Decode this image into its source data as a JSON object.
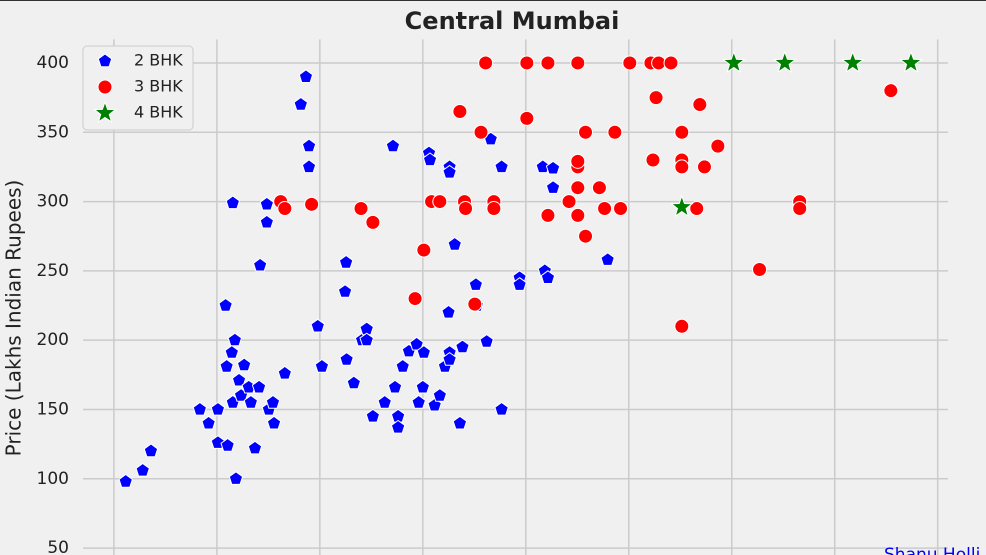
{
  "chart_data": {
    "type": "scatter",
    "title": "Central Mumbai",
    "y_label": "Price (Lakhs Indian Rupees)",
    "annotation": "Shanu Holli",
    "xlim": [
      940,
      2620
    ],
    "xticks": [
      1000,
      1200,
      1400,
      1600,
      1800,
      2000,
      2200,
      2400,
      2600
    ],
    "ylim": [
      45,
      417
    ],
    "yticks": [
      50,
      100,
      150,
      200,
      250,
      300,
      350,
      400
    ],
    "grid": true,
    "legend": "upper-left",
    "series": [
      {
        "name": "2 BHK",
        "color": "#0000ff",
        "marker": "pentagon",
        "x": [
          1023,
          1056,
          1072,
          1167,
          1184,
          1202,
          1202,
          1221,
          1217,
          1219,
          1229,
          1235,
          1231,
          1231,
          1237,
          1243,
          1247,
          1253,
          1262,
          1266,
          1274,
          1282,
          1284,
          1297,
          1297,
          1301,
          1309,
          1311,
          1332,
          1363,
          1373,
          1379,
          1379,
          1396,
          1404,
          1451,
          1449,
          1452,
          1466,
          1482,
          1491,
          1491,
          1503,
          1526,
          1542,
          1546,
          1552,
          1552,
          1561,
          1573,
          1588,
          1592,
          1600,
          1602,
          1612,
          1614,
          1623,
          1633,
          1643,
          1650,
          1652,
          1652,
          1652,
          1652,
          1662,
          1672,
          1677,
          1683,
          1703,
          1705,
          1724,
          1732,
          1753,
          1753,
          1788,
          1788,
          1833,
          1837,
          1843,
          1853,
          1853,
          1959
        ],
        "values": [
          98,
          106,
          120,
          150,
          140,
          150,
          126,
          124,
          225,
          181,
          191,
          200,
          299,
          155,
          100,
          171,
          160,
          182,
          166,
          155,
          122,
          166,
          254,
          285,
          298,
          150,
          155,
          140,
          176,
          370,
          390,
          340,
          325,
          210,
          181,
          256,
          235,
          186,
          169,
          200,
          208,
          200,
          145,
          155,
          340,
          166,
          145,
          137,
          181,
          192,
          197,
          155,
          166,
          191,
          335,
          330,
          153,
          160,
          181,
          220,
          191,
          186,
          325,
          321,
          269,
          140,
          195,
          295,
          240,
          225,
          199,
          345,
          150,
          325,
          245,
          240,
          325,
          250,
          245,
          310,
          324,
          258
        ]
      },
      {
        "name": "3 BHK",
        "color": "#ff0000",
        "marker": "circle",
        "x": [
          1324,
          1332,
          1384,
          1480,
          1503,
          1585,
          1602,
          1617,
          1633,
          1672,
          1681,
          1683,
          1701,
          1713,
          1722,
          1738,
          1738,
          1802,
          1802,
          1843,
          1843,
          1884,
          1901,
          1901,
          1901,
          1901,
          1901,
          1916,
          1916,
          1943,
          1953,
          1973,
          1984,
          2002,
          2043,
          2047,
          2053,
          2058,
          2082,
          2103,
          2103,
          2103,
          2103,
          2132,
          2138,
          2147,
          2173,
          2254,
          2332,
          2332,
          2509
        ],
        "values": [
          300,
          295,
          298,
          295,
          285,
          230,
          265,
          300,
          300,
          365,
          300,
          295,
          226,
          350,
          400,
          300,
          295,
          400,
          360,
          400,
          290,
          300,
          400,
          325,
          329,
          310,
          290,
          350,
          275,
          310,
          295,
          350,
          295,
          400,
          400,
          330,
          375,
          400,
          400,
          350,
          330,
          325,
          210,
          295,
          370,
          325,
          340,
          251,
          300,
          295,
          380
        ]
      },
      {
        "name": "4 BHK",
        "color": "#008000",
        "marker": "star",
        "x": [
          2103,
          2204,
          2303,
          2435,
          2548
        ],
        "values": [
          296,
          400,
          400,
          400,
          400
        ]
      }
    ]
  }
}
